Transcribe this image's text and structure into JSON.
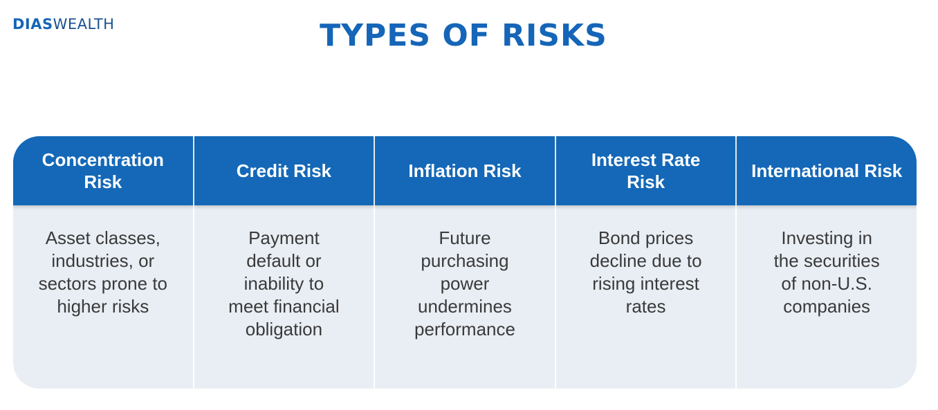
{
  "logo": {
    "bold": "DIAS",
    "light": "WEALTH"
  },
  "title": "TYPES OF RISKS",
  "risks": [
    {
      "name": "Concentration Risk",
      "description": "Asset classes, industries, or sectors prone to higher risks"
    },
    {
      "name": "Credit Risk",
      "description": "Payment default or inability to meet financial obligation"
    },
    {
      "name": "Inflation Risk",
      "description": "Future purchasing power undermines performance"
    },
    {
      "name": "Interest Rate Risk",
      "description": "Bond prices decline due to rising interest rates"
    },
    {
      "name": "International Risk",
      "description": "Investing in the securities of non-U.S. companies"
    }
  ],
  "colors": {
    "brand_blue": "#1565b8",
    "header_blue": "#1468b7",
    "body_bg": "#e9eef4",
    "body_text": "#3a3a3a"
  }
}
